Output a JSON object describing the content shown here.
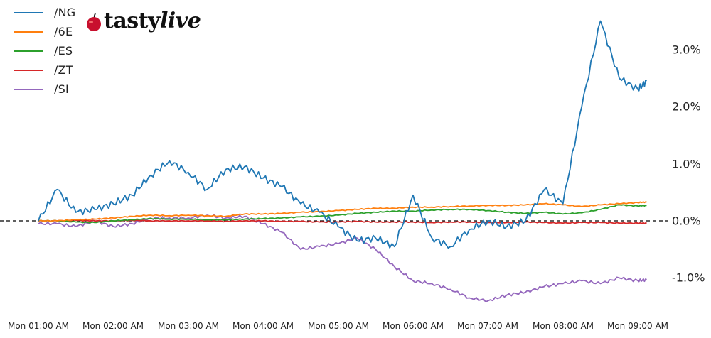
{
  "branding": {
    "logo_text_a": "tasty",
    "logo_text_b": "live",
    "logo_icon": "cherry-icon"
  },
  "legend": [
    {
      "label": "/NG",
      "color": "#1f77b4"
    },
    {
      "label": "/6E",
      "color": "#ff7f0e"
    },
    {
      "label": "/ES",
      "color": "#2ca02c"
    },
    {
      "label": "/ZT",
      "color": "#d62728"
    },
    {
      "label": "/SI",
      "color": "#9467bd"
    }
  ],
  "yticks": [
    "3.0%",
    "2.0%",
    "1.0%",
    "0.0%",
    "-1.0%"
  ],
  "xticks": [
    "Mon 01:00 AM",
    "Mon 02:00 AM",
    "Mon 03:00 AM",
    "Mon 04:00 AM",
    "Mon 05:00 AM",
    "Mon 06:00 AM",
    "Mon 07:00 AM",
    "Mon 08:00 AM",
    "Mon 09:00 AM"
  ],
  "chart_data": {
    "type": "line",
    "title": "",
    "xlabel": "",
    "ylabel": "",
    "y_axis_side": "right",
    "ylim": [
      -1.5,
      3.8
    ],
    "zero_reference_line": {
      "value": 0.0,
      "style": "dashed",
      "color": "#000000"
    },
    "grid": false,
    "legend_position": "upper left",
    "x": [
      "01:00",
      "01:15",
      "01:30",
      "01:45",
      "02:00",
      "02:15",
      "02:30",
      "02:45",
      "03:00",
      "03:15",
      "03:30",
      "03:45",
      "04:00",
      "04:15",
      "04:30",
      "04:45",
      "05:00",
      "05:15",
      "05:30",
      "05:45",
      "06:00",
      "06:15",
      "06:30",
      "06:45",
      "07:00",
      "07:15",
      "07:30",
      "07:45",
      "08:00",
      "08:15",
      "08:30",
      "08:45",
      "09:00",
      "09:07"
    ],
    "series": [
      {
        "name": "/NG",
        "color": "#1f77b4",
        "values": [
          0.0,
          0.55,
          0.15,
          0.2,
          0.3,
          0.45,
          0.8,
          1.05,
          0.85,
          0.55,
          0.9,
          0.95,
          0.75,
          0.6,
          0.3,
          0.15,
          -0.1,
          -0.35,
          -0.3,
          -0.45,
          0.45,
          -0.3,
          -0.45,
          -0.15,
          0.0,
          -0.1,
          0.0,
          0.55,
          0.3,
          2.0,
          3.5,
          2.5,
          2.3,
          2.45
        ]
      },
      {
        "name": "/6E",
        "color": "#ff7f0e",
        "values": [
          0.0,
          0.0,
          0.02,
          0.03,
          0.05,
          0.08,
          0.1,
          0.09,
          0.1,
          0.09,
          0.08,
          0.12,
          0.12,
          0.13,
          0.15,
          0.16,
          0.18,
          0.2,
          0.22,
          0.22,
          0.24,
          0.24,
          0.25,
          0.26,
          0.27,
          0.27,
          0.28,
          0.3,
          0.28,
          0.25,
          0.28,
          0.3,
          0.32,
          0.33
        ]
      },
      {
        "name": "/ES",
        "color": "#2ca02c",
        "values": [
          0.0,
          0.0,
          -0.02,
          -0.03,
          0.0,
          0.02,
          0.04,
          0.03,
          0.03,
          0.02,
          0.02,
          0.03,
          0.04,
          0.05,
          0.07,
          0.08,
          0.1,
          0.13,
          0.15,
          0.17,
          0.17,
          0.19,
          0.2,
          0.2,
          0.18,
          0.15,
          0.13,
          0.15,
          0.12,
          0.14,
          0.2,
          0.28,
          0.26,
          0.27
        ]
      },
      {
        "name": "/ZT",
        "color": "#d62728",
        "values": [
          0.0,
          0.0,
          0.01,
          0.0,
          0.0,
          0.01,
          0.0,
          0.0,
          0.0,
          0.0,
          -0.01,
          0.0,
          0.0,
          -0.01,
          -0.01,
          -0.02,
          -0.02,
          -0.01,
          -0.02,
          -0.02,
          -0.02,
          -0.03,
          -0.02,
          -0.02,
          -0.03,
          -0.03,
          -0.02,
          -0.03,
          -0.04,
          -0.03,
          -0.03,
          -0.04,
          -0.04,
          -0.04
        ]
      },
      {
        "name": "/SI",
        "color": "#9467bd",
        "values": [
          -0.05,
          -0.05,
          -0.1,
          0.0,
          -0.1,
          -0.05,
          0.05,
          0.05,
          0.05,
          0.1,
          0.05,
          0.08,
          -0.05,
          -0.2,
          -0.5,
          -0.45,
          -0.4,
          -0.3,
          -0.5,
          -0.8,
          -1.05,
          -1.1,
          -1.2,
          -1.35,
          -1.4,
          -1.3,
          -1.25,
          -1.15,
          -1.1,
          -1.05,
          -1.1,
          -1.0,
          -1.05,
          -1.03
        ]
      }
    ]
  }
}
